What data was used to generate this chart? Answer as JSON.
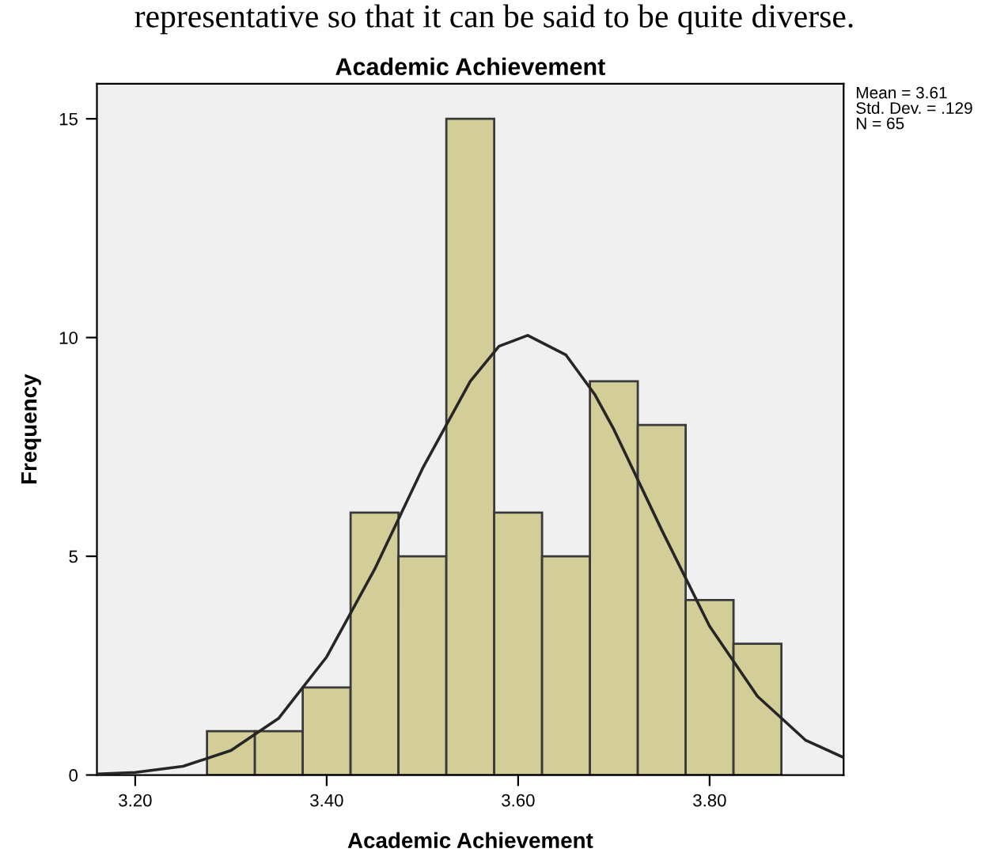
{
  "chart_data": {
    "type": "histogram",
    "title": "Academic Achievement",
    "xlabel": "Academic Achievement",
    "ylabel": "Frequency",
    "bins": [
      3.275,
      3.325,
      3.375,
      3.425,
      3.475,
      3.525,
      3.575,
      3.625,
      3.675,
      3.725,
      3.775,
      3.825,
      3.875
    ],
    "values": [
      1,
      1,
      2,
      6,
      5,
      15,
      6,
      5,
      9,
      8,
      4,
      3
    ],
    "color": "#d3ce97",
    "series": [
      {
        "type": "line",
        "color": "#262626",
        "x": [
          3.16,
          3.2,
          3.25,
          3.3,
          3.35,
          3.4,
          3.45,
          3.5,
          3.55,
          3.58,
          3.61,
          3.65,
          3.68,
          3.7,
          3.75,
          3.8,
          3.85,
          3.9,
          3.94
        ],
        "values": [
          0.02,
          0.06,
          0.2,
          0.56,
          1.3,
          2.7,
          4.7,
          7.0,
          9.0,
          9.8,
          10.05,
          9.6,
          8.7,
          7.9,
          5.6,
          3.4,
          1.8,
          0.8,
          0.4
        ]
      }
    ],
    "xlim": [
      3.16,
      3.94
    ],
    "ylim": [
      0,
      15.8
    ],
    "xticks": [
      {
        "value": 3.2,
        "label": "3.20"
      },
      {
        "value": 3.4,
        "label": "3.40"
      },
      {
        "value": 3.6,
        "label": "3.60"
      },
      {
        "value": 3.8,
        "label": "3.80"
      }
    ],
    "yticks": [
      0,
      5,
      10,
      15
    ],
    "grid": false,
    "annotations": [
      "representative so that it can be said to be quite diverse.",
      "Mean = 3.61\nStd. Dev. = .129\nN = 65"
    ]
  }
}
